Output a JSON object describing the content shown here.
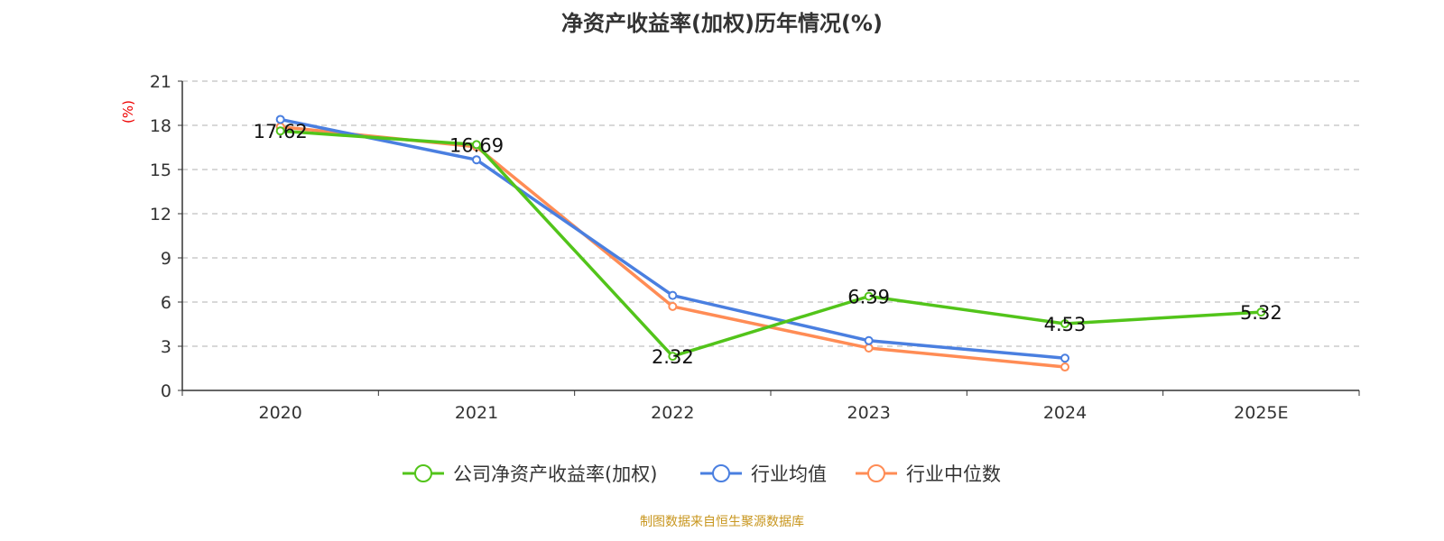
{
  "chart_data": {
    "type": "line",
    "title": "净资产收益率(加权)历年情况(%)",
    "ylabel": "(%)",
    "categories": [
      "2020",
      "2021",
      "2022",
      "2023",
      "2024",
      "2025E"
    ],
    "ylim": [
      0,
      21
    ],
    "yticks": [
      0,
      3,
      6,
      9,
      12,
      15,
      18,
      21
    ],
    "grid": true,
    "legend_position": "bottom",
    "series": [
      {
        "name": "公司净资产收益率(加权)",
        "color": "#52c41a",
        "values": [
          17.62,
          16.69,
          2.32,
          6.39,
          4.53,
          5.32
        ],
        "labels": [
          "17.62",
          "16.69",
          "2.32",
          "6.39",
          "4.53",
          "5.32"
        ]
      },
      {
        "name": "行业均值",
        "color": "#4a7fe0",
        "values": [
          18.4,
          15.66,
          6.45,
          3.38,
          2.19,
          null
        ]
      },
      {
        "name": "行业中位数",
        "color": "#ff8c55",
        "values": [
          17.9,
          16.54,
          5.7,
          2.88,
          1.59,
          null
        ]
      }
    ]
  },
  "source": "制图数据来自恒生聚源数据库"
}
